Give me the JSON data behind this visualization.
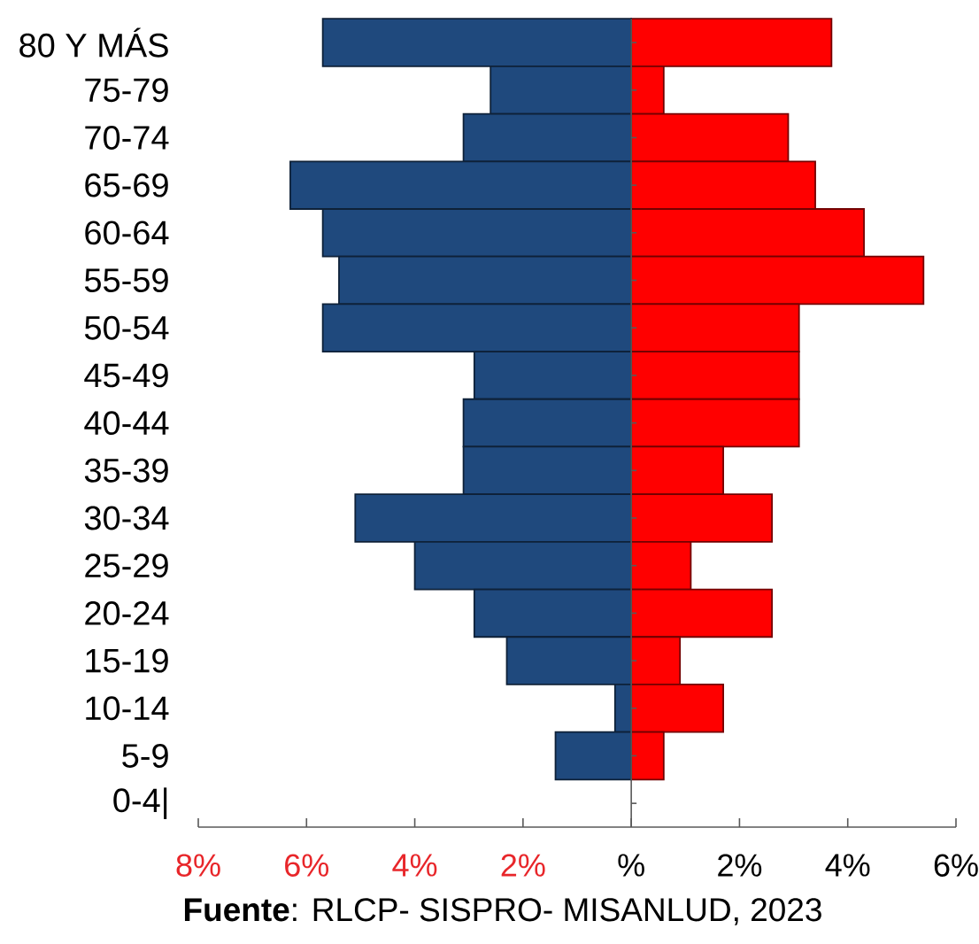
{
  "chart_data": {
    "type": "bar",
    "orientation": "horizontal",
    "stacked": true,
    "categories": [
      "80 Y MÁS",
      "75-79",
      "70-74",
      "65-69",
      "60-64",
      "55-59",
      "50-54",
      "45-49",
      "40-44",
      "35-39",
      "30-34",
      "25-29",
      "20-24",
      "15-19",
      "10-14",
      "5-9",
      "0-4|"
    ],
    "series": [
      {
        "color": "#1f497d",
        "values": [
          -5.7,
          -2.6,
          -3.1,
          -6.3,
          -5.7,
          -5.4,
          -5.7,
          -2.9,
          -3.1,
          -3.1,
          -5.1,
          -4.0,
          -2.9,
          -2.3,
          -0.3,
          -1.4,
          null
        ]
      },
      {
        "color": "#ff0000",
        "values": [
          3.7,
          0.6,
          2.9,
          3.4,
          4.3,
          5.4,
          3.1,
          3.1,
          3.1,
          1.7,
          2.6,
          1.1,
          2.6,
          0.9,
          1.7,
          0.6,
          null
        ]
      }
    ],
    "xlim": [
      -8,
      6
    ],
    "xticks": [
      {
        "value": -8,
        "label": "8%"
      },
      {
        "value": -6,
        "label": "6%"
      },
      {
        "value": -4,
        "label": "4%"
      },
      {
        "value": -2,
        "label": "2%"
      },
      {
        "value": 0,
        "label": "%"
      },
      {
        "value": 2,
        "label": "2%"
      },
      {
        "value": 4,
        "label": "4%"
      },
      {
        "value": 6,
        "label": "6%"
      }
    ],
    "annotations": [
      "**Fuente**: RLCP- SISPRO- MISANLUD, 2023"
    ]
  }
}
